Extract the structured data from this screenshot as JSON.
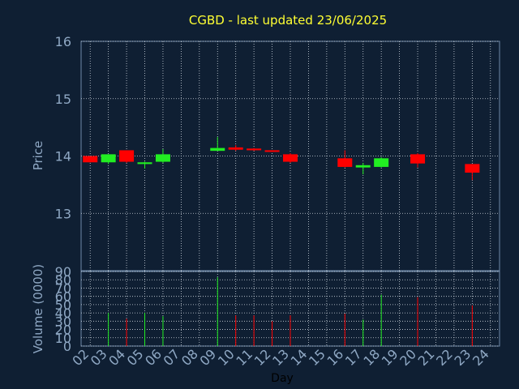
{
  "chart_data": {
    "type": "candlestick",
    "title": "CGBD - last updated 23/06/2025",
    "xlabel": "Day",
    "price_ylabel": "Price",
    "volume_ylabel": "Volume (0000)",
    "x_ticks": [
      "02",
      "03",
      "04",
      "05",
      "06",
      "07",
      "08",
      "09",
      "10",
      "11",
      "12",
      "13",
      "14",
      "15",
      "16",
      "17",
      "18",
      "19",
      "20",
      "21",
      "22",
      "23",
      "24"
    ],
    "price_ylim": [
      12.0,
      16.0
    ],
    "price_ticks": [
      "16",
      "15",
      "14",
      "13"
    ],
    "price_tick_values": [
      16,
      15,
      14,
      13
    ],
    "volume_ylim": [
      0,
      90
    ],
    "volume_ticks": [
      "90",
      "80",
      "70",
      "60",
      "50",
      "40",
      "30",
      "20",
      "10",
      "0"
    ],
    "volume_tick_values": [
      90,
      80,
      70,
      60,
      50,
      40,
      30,
      20,
      10,
      0
    ],
    "grid": true,
    "colors": {
      "background": "#0f1f33",
      "axis": "#8fa8c4",
      "title": "#ffff33",
      "up": "#22ee22",
      "down": "#ff0000",
      "grid": "#d0d8e0",
      "plot_border": "#6f8aa8"
    },
    "candles": [
      {
        "day": "02",
        "open": 14.0,
        "close": 13.89,
        "high": 14.0,
        "low": 13.89,
        "volume": 0
      },
      {
        "day": "03",
        "open": 13.89,
        "close": 14.03,
        "high": 14.03,
        "low": 13.86,
        "volume": 40
      },
      {
        "day": "04",
        "open": 14.1,
        "close": 13.9,
        "high": 14.1,
        "low": 13.88,
        "volume": 33
      },
      {
        "day": "05",
        "open": 13.86,
        "close": 13.89,
        "high": 13.9,
        "low": 13.78,
        "volume": 40
      },
      {
        "day": "06",
        "open": 13.9,
        "close": 14.03,
        "high": 14.12,
        "low": 13.88,
        "volume": 36
      },
      {
        "day": "09",
        "open": 14.09,
        "close": 14.14,
        "high": 14.33,
        "low": 14.09,
        "volume": 83
      },
      {
        "day": "10",
        "open": 14.15,
        "close": 14.11,
        "high": 14.19,
        "low": 14.09,
        "volume": 37
      },
      {
        "day": "11",
        "open": 14.13,
        "close": 14.1,
        "high": 14.14,
        "low": 14.09,
        "volume": 37
      },
      {
        "day": "12",
        "open": 14.1,
        "close": 14.09,
        "high": 14.1,
        "low": 14.07,
        "volume": 30
      },
      {
        "day": "13",
        "open": 14.03,
        "close": 13.9,
        "high": 14.05,
        "low": 13.88,
        "volume": 37
      },
      {
        "day": "16",
        "open": 13.96,
        "close": 13.81,
        "high": 14.1,
        "low": 13.8,
        "volume": 39
      },
      {
        "day": "17",
        "open": 13.8,
        "close": 13.84,
        "high": 13.88,
        "low": 13.68,
        "volume": 32
      },
      {
        "day": "18",
        "open": 13.81,
        "close": 13.96,
        "high": 13.98,
        "low": 13.8,
        "volume": 62
      },
      {
        "day": "20",
        "open": 14.03,
        "close": 13.87,
        "high": 14.05,
        "low": 13.8,
        "volume": 59
      },
      {
        "day": "23",
        "open": 13.86,
        "close": 13.71,
        "high": 13.86,
        "low": 13.58,
        "volume": 49
      }
    ]
  }
}
